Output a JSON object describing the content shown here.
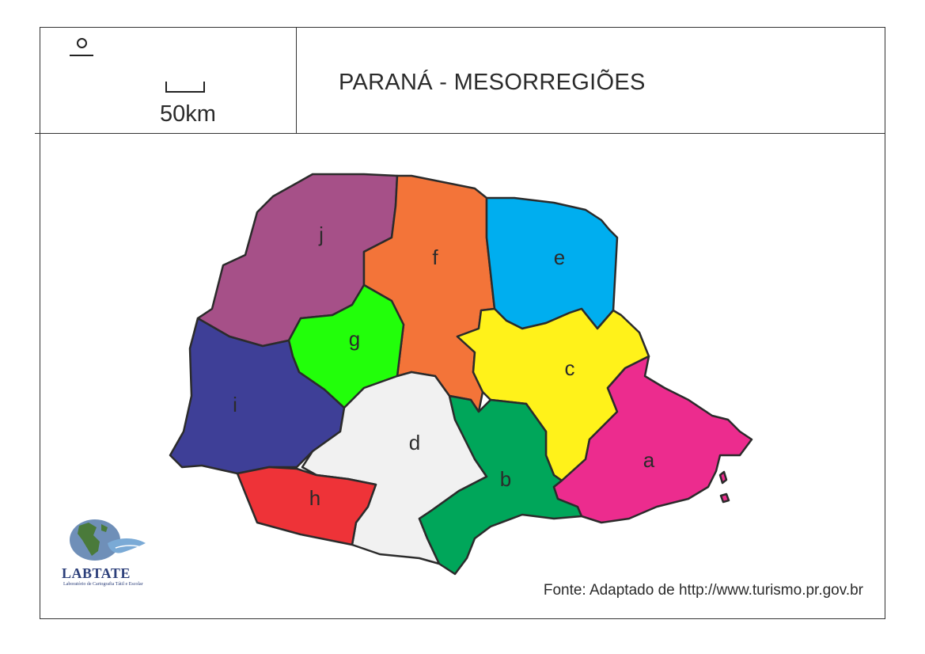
{
  "map": {
    "title": "PARANÁ - MESORREGIÕES",
    "scale": {
      "label": "50km"
    },
    "north_arrow": {
      "icon": "north-arrow-icon"
    },
    "regions": [
      {
        "letter": "a",
        "color": "#ec2c8e"
      },
      {
        "letter": "b",
        "color": "#00a65a"
      },
      {
        "letter": "c",
        "color": "#fff21a"
      },
      {
        "letter": "d",
        "color": "#f1f1f1"
      },
      {
        "letter": "e",
        "color": "#00aeef"
      },
      {
        "letter": "f",
        "color": "#f37439"
      },
      {
        "letter": "g",
        "color": "#22ff0a"
      },
      {
        "letter": "h",
        "color": "#ee3338"
      },
      {
        "letter": "i",
        "color": "#3e3f97"
      },
      {
        "letter": "j",
        "color": "#a65088"
      }
    ],
    "source": "Fonte: Adaptado de http://www.turismo.pr.gov.br",
    "logo": {
      "name": "LABTATE",
      "subtitle": "Laboratório de Cartografia Tátil e Escolar"
    }
  }
}
